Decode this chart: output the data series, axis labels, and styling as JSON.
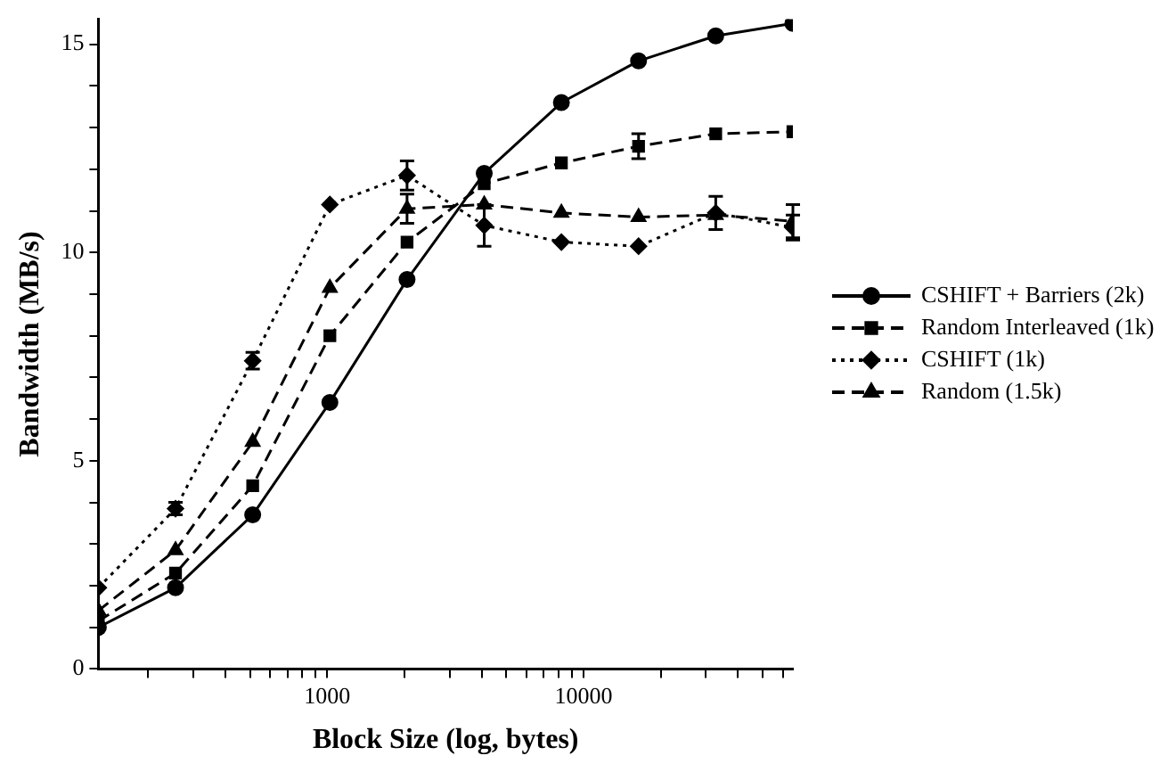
{
  "chart_data": {
    "type": "line",
    "xlabel": "Block Size (log, bytes)",
    "ylabel": "Bandwidth (MB/s)",
    "log": "x",
    "x": [
      128,
      256,
      512,
      1024,
      2048,
      4096,
      8192,
      16384,
      32768,
      65536
    ],
    "series": [
      {
        "name": "CSHIFT + Barriers (2k)",
        "color": "#000000",
        "marker": "circle",
        "line_style": "solid",
        "values": [
          1.0,
          1.95,
          3.7,
          6.4,
          9.35,
          11.9,
          13.6,
          14.6,
          15.2,
          15.5
        ]
      },
      {
        "name": "Random Interleaved (1k)",
        "color": "#000000",
        "marker": "square",
        "line_style": "dashed",
        "values": [
          1.15,
          2.3,
          4.4,
          8.0,
          10.25,
          11.65,
          12.15,
          12.55,
          12.85,
          12.9
        ],
        "errors": [
          null,
          null,
          null,
          null,
          null,
          null,
          null,
          0.3,
          null,
          null
        ]
      },
      {
        "name": "CSHIFT (1k)",
        "color": "#000000",
        "marker": "diamond",
        "line_style": "dotted",
        "values": [
          1.95,
          3.85,
          7.4,
          11.15,
          11.85,
          10.65,
          10.25,
          10.15,
          10.95,
          10.6
        ],
        "errors": [
          null,
          0.15,
          0.2,
          null,
          0.35,
          0.5,
          null,
          null,
          0.4,
          0.3
        ]
      },
      {
        "name": "Random (1.5k)",
        "color": "#000000",
        "marker": "triangle",
        "line_style": "dashed",
        "values": [
          1.4,
          2.85,
          5.45,
          9.15,
          11.05,
          11.15,
          10.95,
          10.85,
          10.9,
          10.75
        ],
        "errors": [
          null,
          null,
          null,
          null,
          0.35,
          null,
          null,
          null,
          null,
          0.4
        ]
      }
    ],
    "xlim": [
      128,
      65536
    ],
    "xticks": [
      {
        "value": 200,
        "label": null
      },
      {
        "value": 300,
        "label": null
      },
      {
        "value": 400,
        "label": null
      },
      {
        "value": 500,
        "label": null
      },
      {
        "value": 600,
        "label": null
      },
      {
        "value": 700,
        "label": null
      },
      {
        "value": 800,
        "label": null
      },
      {
        "value": 900,
        "label": null
      },
      1000,
      {
        "value": 2000,
        "label": null
      },
      {
        "value": 3000,
        "label": null
      },
      {
        "value": 4000,
        "label": null
      },
      {
        "value": 5000,
        "label": null
      },
      {
        "value": 6000,
        "label": null
      },
      {
        "value": 7000,
        "label": null
      },
      {
        "value": 8000,
        "label": null
      },
      {
        "value": 9000,
        "label": null
      },
      10000,
      {
        "value": 20000,
        "label": null
      },
      {
        "value": 30000,
        "label": null
      },
      {
        "value": 40000,
        "label": null
      },
      {
        "value": 50000,
        "label": null
      },
      {
        "value": 60000,
        "label": null
      }
    ],
    "ylim": [
      0,
      15.6
    ],
    "yticks": [
      0,
      {
        "value": 1,
        "label": null
      },
      {
        "value": 2,
        "label": null
      },
      {
        "value": 3,
        "label": null
      },
      {
        "value": 4,
        "label": null
      },
      5,
      {
        "value": 6,
        "label": null
      },
      {
        "value": 7,
        "label": null
      },
      {
        "value": 8,
        "label": null
      },
      {
        "value": 9,
        "label": null
      },
      10,
      {
        "value": 11,
        "label": null
      },
      {
        "value": 12,
        "label": null
      },
      {
        "value": 13,
        "label": null
      },
      {
        "value": 14,
        "label": null
      },
      15
    ],
    "grid": false,
    "legend": "right"
  }
}
